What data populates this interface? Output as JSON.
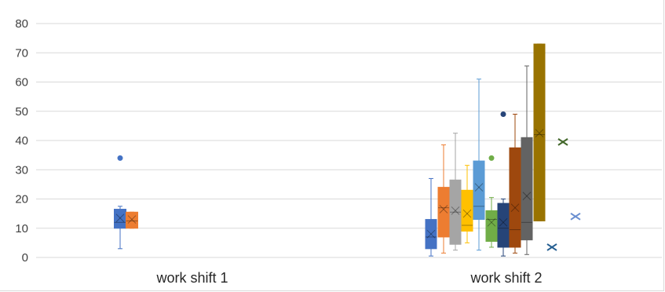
{
  "chart_data": {
    "type": "boxplot",
    "title": "",
    "xlabel": "",
    "ylabel": "",
    "ylim": [
      0,
      80
    ],
    "yticks": [
      0,
      10,
      20,
      30,
      40,
      50,
      60,
      70,
      80
    ],
    "grid": true,
    "categories": [
      "work shift 1",
      "work shift 2"
    ],
    "series": [
      {
        "category": "work shift 1",
        "color": "#4472C4",
        "min": 3,
        "q1": 10,
        "median": 12,
        "q3": 16.5,
        "max": 17.5,
        "mean": 13.5,
        "outliers": [
          34
        ]
      },
      {
        "category": "work shift 1",
        "color": "#ED7D31",
        "min": 10,
        "q1": 10,
        "median": 12.5,
        "q3": 15.5,
        "max": 15.5,
        "mean": 13,
        "outliers": []
      },
      {
        "category": "work shift 2",
        "color": "#4472C4",
        "min": 0.5,
        "q1": 3,
        "median": 7,
        "q3": 13,
        "max": 27,
        "mean": 8,
        "outliers": []
      },
      {
        "category": "work shift 2",
        "color": "#ED7D31",
        "min": 1.5,
        "q1": 7,
        "median": 17,
        "q3": 24,
        "max": 38.5,
        "mean": 16.5,
        "outliers": []
      },
      {
        "category": "work shift 2",
        "color": "#A5A5A5",
        "min": 2.5,
        "q1": 4.5,
        "median": 15.5,
        "q3": 26.5,
        "max": 42.5,
        "mean": 16,
        "outliers": []
      },
      {
        "category": "work shift 2",
        "color": "#FFC000",
        "min": 5,
        "q1": 9,
        "median": 11,
        "q3": 23,
        "max": 31.5,
        "mean": 15,
        "outliers": []
      },
      {
        "category": "work shift 2",
        "color": "#5B9BD5",
        "min": 2.5,
        "q1": 13,
        "median": 17.5,
        "q3": 33,
        "max": 61,
        "mean": 24,
        "outliers": []
      },
      {
        "category": "work shift 2",
        "color": "#70AD47",
        "min": 3.5,
        "q1": 5.5,
        "median": 13,
        "q3": 16,
        "max": 20.5,
        "mean": 12,
        "outliers": [
          34
        ]
      },
      {
        "category": "work shift 2",
        "color": "#264478",
        "min": 0.5,
        "q1": 3.5,
        "median": 10,
        "q3": 18.5,
        "max": 20,
        "mean": 12,
        "outliers": [
          49
        ]
      },
      {
        "category": "work shift 2",
        "color": "#9E480E",
        "min": 1.5,
        "q1": 3.5,
        "median": 9.5,
        "q3": 37.5,
        "max": 49,
        "mean": 17,
        "outliers": []
      },
      {
        "category": "work shift 2",
        "color": "#636363",
        "min": 1,
        "q1": 6,
        "median": 12,
        "q3": 41,
        "max": 65.5,
        "mean": 21,
        "outliers": []
      },
      {
        "category": "work shift 2",
        "color": "#997300",
        "min": 12.5,
        "q1": 12.5,
        "median": 42,
        "q3": 73,
        "max": 73,
        "mean": 42.5,
        "outliers": []
      },
      {
        "category": "work shift 2",
        "color": "#255E91",
        "min": 3.5,
        "q1": 3.5,
        "median": 3.5,
        "q3": 3.5,
        "max": 3.5,
        "mean": 3.5,
        "outliers": [],
        "single": true
      },
      {
        "category": "work shift 2",
        "color": "#43682B",
        "min": 39.5,
        "q1": 39.5,
        "median": 39.5,
        "q3": 39.5,
        "max": 39.5,
        "mean": 39.5,
        "outliers": [],
        "single": true
      },
      {
        "category": "work shift 2",
        "color": "#698ED0",
        "min": 14,
        "q1": 14,
        "median": 14,
        "q3": 14,
        "max": 14,
        "mean": 14,
        "outliers": [],
        "single": true
      }
    ]
  }
}
